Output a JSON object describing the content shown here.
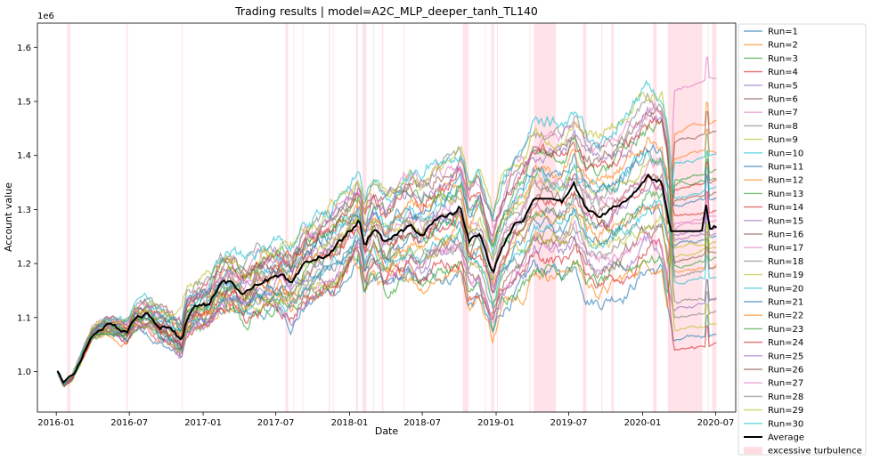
{
  "chart_data": {
    "type": "line",
    "title": "Trading results | model=A2C_MLP_deeper_tanh_TL140",
    "xlabel": "Date",
    "ylabel": "Account value",
    "y_offset_label": "1e6",
    "x_range": [
      "2015-11-15",
      "2020-08-20"
    ],
    "ylim": [
      0.925,
      1.645
    ],
    "x_ticks": [
      {
        "date": "2016-01-01",
        "label": "2016-01"
      },
      {
        "date": "2016-07-01",
        "label": "2016-07"
      },
      {
        "date": "2017-01-01",
        "label": "2017-01"
      },
      {
        "date": "2017-07-01",
        "label": "2017-07"
      },
      {
        "date": "2018-01-01",
        "label": "2018-01"
      },
      {
        "date": "2018-07-01",
        "label": "2018-07"
      },
      {
        "date": "2019-01-01",
        "label": "2019-01"
      },
      {
        "date": "2019-07-01",
        "label": "2019-07"
      },
      {
        "date": "2020-01-01",
        "label": "2020-01"
      },
      {
        "date": "2020-07-01",
        "label": "2020-07"
      }
    ],
    "y_ticks": [
      {
        "value": 1.0,
        "label": "1.0"
      },
      {
        "value": 1.1,
        "label": "1.1"
      },
      {
        "value": 1.2,
        "label": "1.2"
      },
      {
        "value": 1.3,
        "label": "1.3"
      },
      {
        "value": 1.4,
        "label": "1.4"
      },
      {
        "value": 1.5,
        "label": "1.5"
      },
      {
        "value": 1.6,
        "label": "1.6"
      }
    ],
    "grid": false,
    "legend_position": "outside-right",
    "average": {
      "name": "Average",
      "color": "#000000",
      "points": [
        [
          "2016-01-04",
          1.0
        ],
        [
          "2016-01-20",
          0.975
        ],
        [
          "2016-02-10",
          0.99
        ],
        [
          "2016-03-01",
          1.02
        ],
        [
          "2016-04-01",
          1.07
        ],
        [
          "2016-05-01",
          1.085
        ],
        [
          "2016-06-01",
          1.08
        ],
        [
          "2016-06-27",
          1.075
        ],
        [
          "2016-07-15",
          1.1
        ],
        [
          "2016-08-15",
          1.105
        ],
        [
          "2016-09-15",
          1.085
        ],
        [
          "2016-10-15",
          1.075
        ],
        [
          "2016-11-09",
          1.06
        ],
        [
          "2016-11-20",
          1.1
        ],
        [
          "2016-12-15",
          1.12
        ],
        [
          "2017-01-15",
          1.125
        ],
        [
          "2017-02-15",
          1.16
        ],
        [
          "2017-03-15",
          1.165
        ],
        [
          "2017-04-15",
          1.145
        ],
        [
          "2017-05-15",
          1.165
        ],
        [
          "2017-06-15",
          1.17
        ],
        [
          "2017-07-15",
          1.175
        ],
        [
          "2017-08-10",
          1.16
        ],
        [
          "2017-09-10",
          1.195
        ],
        [
          "2017-10-15",
          1.21
        ],
        [
          "2017-11-15",
          1.22
        ],
        [
          "2017-12-15",
          1.245
        ],
        [
          "2018-01-25",
          1.28
        ],
        [
          "2018-02-08",
          1.23
        ],
        [
          "2018-03-01",
          1.265
        ],
        [
          "2018-04-01",
          1.235
        ],
        [
          "2018-05-01",
          1.255
        ],
        [
          "2018-06-01",
          1.27
        ],
        [
          "2018-07-01",
          1.255
        ],
        [
          "2018-08-01",
          1.28
        ],
        [
          "2018-09-15",
          1.29
        ],
        [
          "2018-10-05",
          1.305
        ],
        [
          "2018-10-25",
          1.24
        ],
        [
          "2018-11-20",
          1.255
        ],
        [
          "2018-12-24",
          1.18
        ],
        [
          "2019-01-15",
          1.23
        ],
        [
          "2019-02-15",
          1.27
        ],
        [
          "2019-03-15",
          1.285
        ],
        [
          "2019-04-05",
          1.32
        ],
        [
          "2019-05-20",
          1.32
        ],
        [
          "2019-06-15",
          1.315
        ],
        [
          "2019-07-15",
          1.345
        ],
        [
          "2019-08-15",
          1.3
        ],
        [
          "2019-09-15",
          1.29
        ],
        [
          "2019-10-15",
          1.3
        ],
        [
          "2019-11-15",
          1.315
        ],
        [
          "2019-12-15",
          1.335
        ],
        [
          "2020-01-15",
          1.36
        ],
        [
          "2020-02-19",
          1.355
        ],
        [
          "2020-03-05",
          1.29
        ],
        [
          "2020-03-10",
          1.26
        ],
        [
          "2020-05-28",
          1.26
        ],
        [
          "2020-06-08",
          1.31
        ],
        [
          "2020-06-15",
          1.265
        ],
        [
          "2020-07-03",
          1.27
        ]
      ]
    },
    "series": [
      {
        "name": "Run=1",
        "color": "#1f77b4",
        "end": 1.07,
        "peak": 1.46,
        "low": 1.05
      },
      {
        "name": "Run=2",
        "color": "#ff7f0e",
        "end": 1.46,
        "peak": 1.5,
        "low": 1.1
      },
      {
        "name": "Run=3",
        "color": "#2ca02c",
        "end": 1.37,
        "peak": 1.45,
        "low": 1.12
      },
      {
        "name": "Run=4",
        "color": "#d62728",
        "end": 1.05,
        "peak": 1.4,
        "low": 1.02
      },
      {
        "name": "Run=5",
        "color": "#9467bd",
        "end": 1.13,
        "peak": 1.42,
        "low": 1.1
      },
      {
        "name": "Run=6",
        "color": "#8c564b",
        "end": 1.44,
        "peak": 1.52,
        "low": 1.1
      },
      {
        "name": "Run=7",
        "color": "#e377c2",
        "end": 1.54,
        "peak": 1.61,
        "low": 1.1
      },
      {
        "name": "Run=8",
        "color": "#7f7f7f",
        "end": 1.11,
        "peak": 1.4,
        "low": 1.1
      },
      {
        "name": "Run=9",
        "color": "#bcbd22",
        "end": 1.23,
        "peak": 1.44,
        "low": 1.1
      },
      {
        "name": "Run=10",
        "color": "#17becf",
        "end": 1.4,
        "peak": 1.47,
        "low": 1.1
      },
      {
        "name": "Run=11",
        "color": "#1f77b4",
        "end": 1.25,
        "peak": 1.4,
        "low": 1.08
      },
      {
        "name": "Run=12",
        "color": "#ff7f0e",
        "end": 1.2,
        "peak": 1.42,
        "low": 1.1
      },
      {
        "name": "Run=13",
        "color": "#2ca02c",
        "end": 1.36,
        "peak": 1.45,
        "low": 1.1
      },
      {
        "name": "Run=14",
        "color": "#d62728",
        "end": 1.35,
        "peak": 1.43,
        "low": 1.1
      },
      {
        "name": "Run=15",
        "color": "#9467bd",
        "end": 1.27,
        "peak": 1.44,
        "low": 1.1
      },
      {
        "name": "Run=16",
        "color": "#8c564b",
        "end": 1.33,
        "peak": 1.45,
        "low": 1.1
      },
      {
        "name": "Run=17",
        "color": "#e377c2",
        "end": 1.29,
        "peak": 1.46,
        "low": 1.1
      },
      {
        "name": "Run=18",
        "color": "#7f7f7f",
        "end": 1.14,
        "peak": 1.41,
        "low": 1.1
      },
      {
        "name": "Run=19",
        "color": "#bcbd22",
        "end": 1.09,
        "peak": 1.42,
        "low": 1.08
      },
      {
        "name": "Run=20",
        "color": "#17becf",
        "end": 1.18,
        "peak": 1.45,
        "low": 1.1
      },
      {
        "name": "Run=21",
        "color": "#1f77b4",
        "end": 1.32,
        "peak": 1.46,
        "low": 1.1
      },
      {
        "name": "Run=22",
        "color": "#ff7f0e",
        "end": 1.41,
        "peak": 1.48,
        "low": 1.1
      },
      {
        "name": "Run=23",
        "color": "#2ca02c",
        "end": 1.21,
        "peak": 1.45,
        "low": 1.1
      },
      {
        "name": "Run=24",
        "color": "#d62728",
        "end": 1.3,
        "peak": 1.44,
        "low": 1.1
      },
      {
        "name": "Run=25",
        "color": "#9467bd",
        "end": 1.26,
        "peak": 1.43,
        "low": 1.1
      },
      {
        "name": "Run=26",
        "color": "#8c564b",
        "end": 1.22,
        "peak": 1.44,
        "low": 1.1
      },
      {
        "name": "Run=27",
        "color": "#e377c2",
        "end": 1.28,
        "peak": 1.45,
        "low": 1.1
      },
      {
        "name": "Run=28",
        "color": "#7f7f7f",
        "end": 1.19,
        "peak": 1.42,
        "low": 1.1
      },
      {
        "name": "Run=29",
        "color": "#bcbd22",
        "end": 1.24,
        "peak": 1.43,
        "low": 1.1
      },
      {
        "name": "Run=30",
        "color": "#17becf",
        "end": 1.34,
        "peak": 1.46,
        "low": 1.1
      }
    ],
    "turbulence": {
      "name": "excessive turbulence",
      "color": "#ffc0cb",
      "spans": [
        [
          "2016-01-28",
          "2016-02-05"
        ],
        [
          "2016-06-24",
          "2016-06-27"
        ],
        [
          "2016-11-09",
          "2016-11-10"
        ],
        [
          "2017-07-25",
          "2017-08-01"
        ],
        [
          "2017-08-14",
          "2017-08-15"
        ],
        [
          "2017-09-05",
          "2017-09-06"
        ],
        [
          "2017-11-10",
          "2017-11-13"
        ],
        [
          "2017-11-20",
          "2017-11-21"
        ],
        [
          "2018-01-17",
          "2018-01-22"
        ],
        [
          "2018-02-02",
          "2018-02-12"
        ],
        [
          "2018-02-28",
          "2018-03-01"
        ],
        [
          "2018-03-22",
          "2018-03-26"
        ],
        [
          "2018-05-15",
          "2018-05-16"
        ],
        [
          "2018-10-10",
          "2018-10-24"
        ],
        [
          "2018-12-04",
          "2018-12-05"
        ],
        [
          "2018-12-20",
          "2018-12-27"
        ],
        [
          "2019-01-03",
          "2019-01-04"
        ],
        [
          "2019-03-25",
          "2019-03-26"
        ],
        [
          "2019-04-05",
          "2019-05-30"
        ],
        [
          "2019-08-05",
          "2019-08-14"
        ],
        [
          "2019-09-20",
          "2019-09-23"
        ],
        [
          "2019-10-15",
          "2019-10-21"
        ],
        [
          "2020-01-27",
          "2020-02-05"
        ],
        [
          "2020-03-04",
          "2020-05-29"
        ],
        [
          "2020-06-11",
          "2020-06-12"
        ],
        [
          "2020-06-22",
          "2020-07-03"
        ]
      ]
    }
  }
}
